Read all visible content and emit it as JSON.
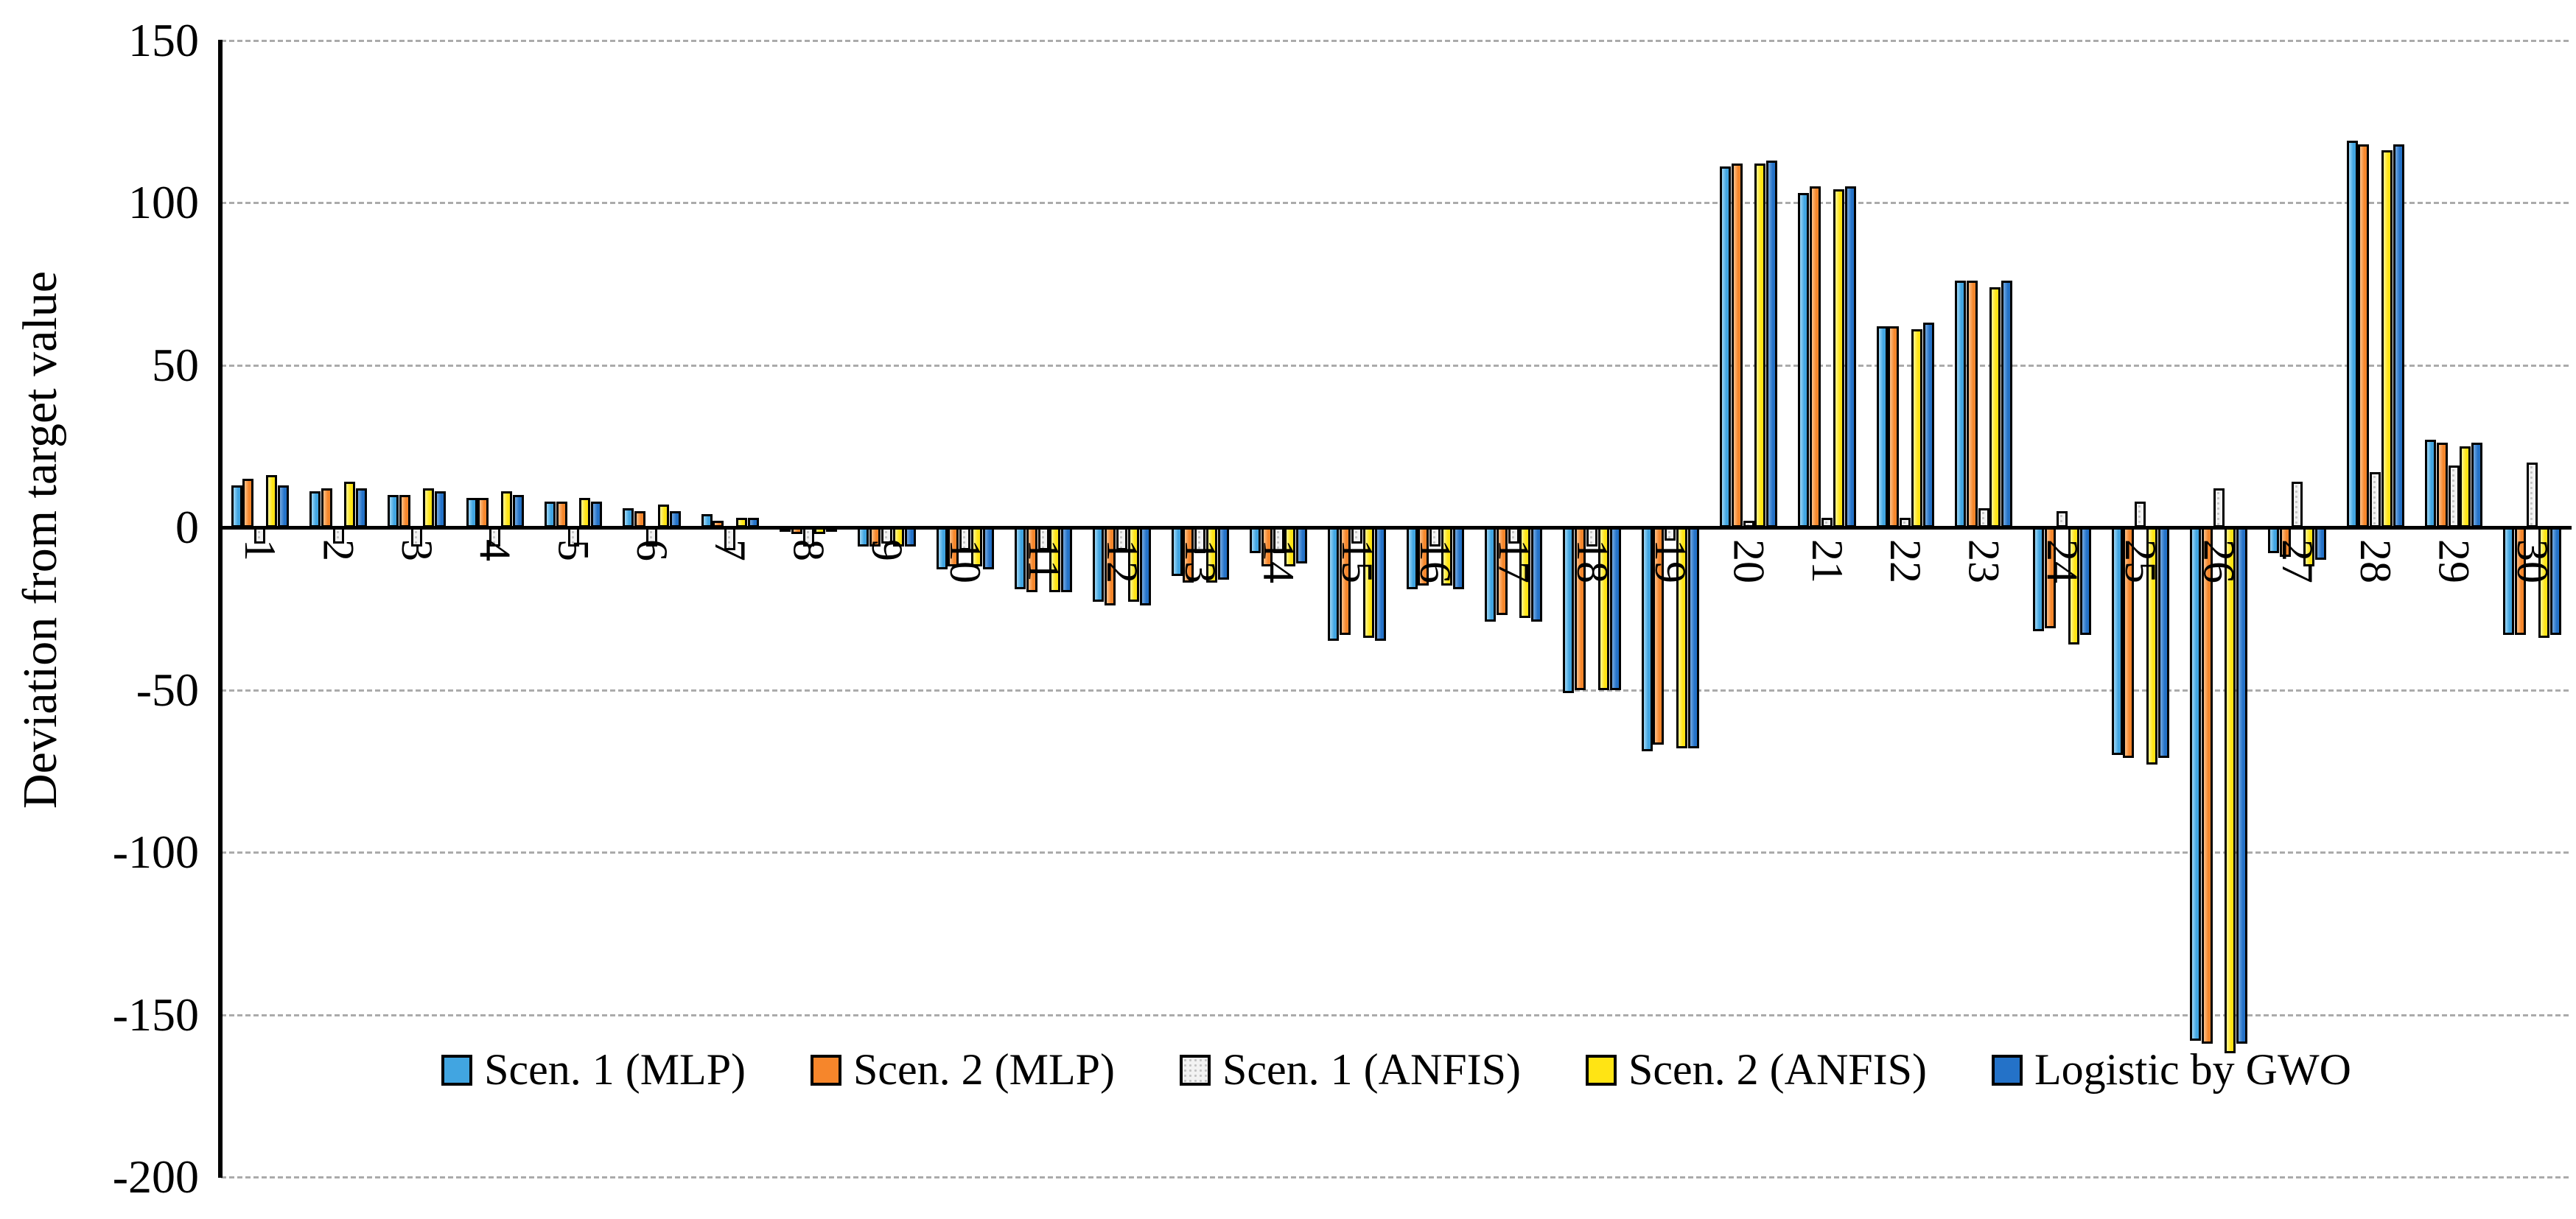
{
  "chart_data": {
    "type": "bar",
    "title": "",
    "xlabel": "",
    "ylabel": "Deviation from target value",
    "ylim": [
      -200,
      150
    ],
    "yticks": [
      150,
      100,
      50,
      0,
      -50,
      -100,
      -150,
      -200
    ],
    "grid": true,
    "legend_position": "bottom-inside",
    "categories": [
      "1",
      "2",
      "3",
      "4",
      "5",
      "6",
      "7",
      "8",
      "9",
      "10",
      "11",
      "12",
      "13",
      "14",
      "15",
      "16",
      "17",
      "18",
      "19",
      "20",
      "21",
      "22",
      "23",
      "24",
      "25",
      "26",
      "27",
      "28",
      "29",
      "30"
    ],
    "series": [
      {
        "name": "Scen. 1 (MLP)",
        "color": "#41a5e1",
        "color_light": "#9ed7f6",
        "pattern": "solid",
        "values": [
          13,
          11,
          10,
          9,
          8,
          6,
          4,
          -1,
          -6,
          -13,
          -19,
          -23,
          -15,
          -8,
          -35,
          -19,
          -29,
          -51,
          -69,
          111,
          103,
          62,
          76,
          -32,
          -70,
          -158,
          -8,
          119,
          27,
          -33
        ]
      },
      {
        "name": "Scen. 2 (MLP)",
        "color": "#f6862b",
        "color_light": "#fcc28a",
        "pattern": "solid",
        "values": [
          15,
          12,
          10,
          9,
          8,
          5,
          2,
          -2,
          -6,
          -12,
          -20,
          -24,
          -17,
          -12,
          -33,
          -18,
          -27,
          -50,
          -67,
          112,
          105,
          62,
          76,
          -31,
          -71,
          -159,
          -9,
          118,
          26,
          -33
        ]
      },
      {
        "name": "Scen. 1 (ANFIS)",
        "color": "#f2f2f2",
        "color_light": "#ffffff",
        "pattern": "dots",
        "values": [
          -5,
          -5,
          -6,
          -6,
          -6,
          -6,
          -7,
          -6,
          -5,
          -7,
          -7,
          -7,
          -8,
          -8,
          -5,
          -6,
          -5,
          -6,
          -4,
          2,
          3,
          3,
          6,
          5,
          8,
          12,
          14,
          17,
          19,
          20
        ]
      },
      {
        "name": "Scen. 2 (ANFIS)",
        "color": "#ffe414",
        "color_light": "#fff695",
        "pattern": "solid",
        "values": [
          16,
          14,
          12,
          11,
          9,
          7,
          3,
          -2,
          -6,
          -12,
          -20,
          -23,
          -17,
          -12,
          -34,
          -18,
          -28,
          -50,
          -68,
          112,
          104,
          61,
          74,
          -36,
          -73,
          -162,
          -12,
          116,
          25,
          -34
        ]
      },
      {
        "name": "Logistic by GWO",
        "color": "#2472c8",
        "color_light": "#74a9e0",
        "pattern": "solid",
        "values": [
          13,
          12,
          11,
          10,
          8,
          5,
          3,
          -1,
          -6,
          -13,
          -20,
          -24,
          -16,
          -11,
          -35,
          -19,
          -29,
          -50,
          -68,
          113,
          105,
          63,
          76,
          -33,
          -71,
          -159,
          -10,
          118,
          26,
          -33
        ]
      }
    ]
  }
}
